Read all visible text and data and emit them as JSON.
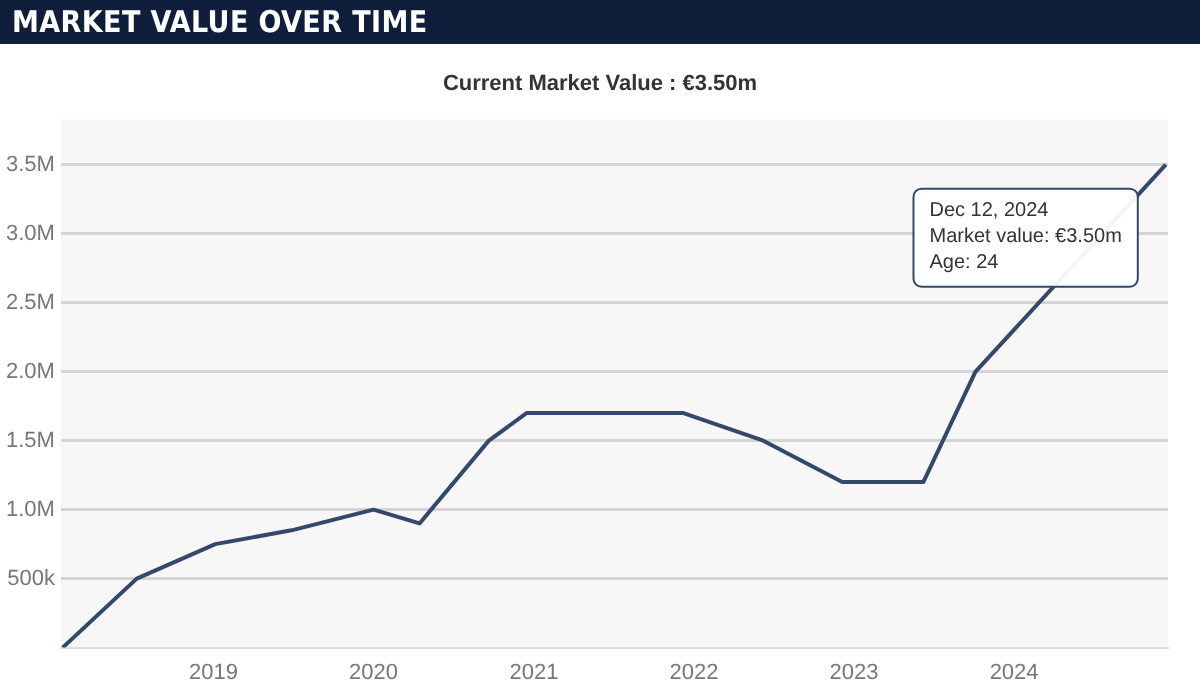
{
  "chart_data": {
    "type": "line",
    "title": "MARKET VALUE OVER TIME",
    "subtitle": "Current Market Value : €3.50m",
    "x": [
      "2018-01-22",
      "2018-07-10",
      "2019-01-05",
      "2019-06-28",
      "2020-01-01",
      "2020-04-15",
      "2020-09-20",
      "2020-12-15",
      "2021-06-17",
      "2021-12-08",
      "2022-06-08",
      "2022-12-05",
      "2023-06-08",
      "2023-10-05",
      "2024-12-12"
    ],
    "series": [
      {
        "color": "#34496a",
        "values": [
          0,
          500000,
          750000,
          850000,
          1000000,
          900000,
          1500000,
          1700000,
          1700000,
          1700000,
          1500000,
          1200000,
          1200000,
          2000000,
          3500000
        ]
      }
    ],
    "xlim": [
      "2018-01-18",
      "2024-12-17"
    ],
    "xticks": [
      "2019",
      "2020",
      "2021",
      "2022",
      "2023",
      "2024"
    ],
    "ylim": [
      0,
      3830000
    ],
    "yticks": [
      {
        "value": 500000,
        "label": "500k"
      },
      {
        "value": 1000000,
        "label": "1.0M"
      },
      {
        "value": 1500000,
        "label": "1.5M"
      },
      {
        "value": 2000000,
        "label": "2.0M"
      },
      {
        "value": 2500000,
        "label": "2.5M"
      },
      {
        "value": 3000000,
        "label": "3.0M"
      },
      {
        "value": 3500000,
        "label": "3.5M"
      }
    ],
    "grid": "y",
    "legend": false,
    "marker": "none",
    "line_style": "solid",
    "annotations": [
      {
        "text": "Dec 12, 2024\nMarket value: €3.50m\nAge: 24",
        "x": "2024-12-12",
        "y": 3500000
      }
    ]
  }
}
